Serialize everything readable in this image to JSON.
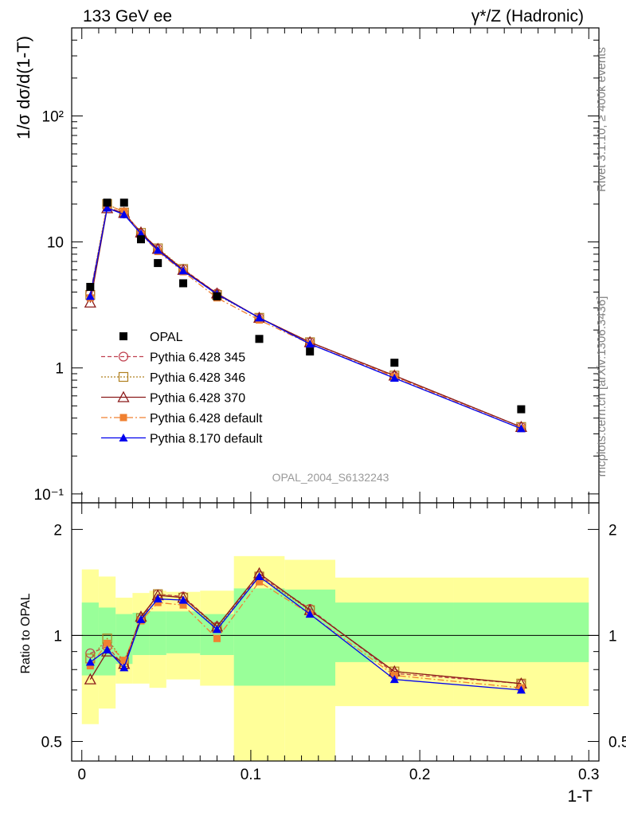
{
  "header": {
    "left": "133 GeV ee",
    "right": "γ*/Z (Hadronic)"
  },
  "side_labels": {
    "rivet": "Rivet 3.1.10, ≥ 400k events",
    "mcplots": "mcplots.cern.ch [arXiv:1306.3436]"
  },
  "watermark": "OPAL_2004_S6132243",
  "chart_data": [
    {
      "type": "scatter",
      "panel": "main",
      "ylabel": "1/σ dσ/d(1-T)",
      "yscale": "log",
      "ylim": [
        0.085,
        500
      ],
      "xlim": [
        -0.006,
        0.306
      ],
      "ytick_labels": [
        "10⁻¹",
        "1",
        "10",
        "10²"
      ],
      "x": [
        0.005,
        0.015,
        0.025,
        0.035,
        0.045,
        0.06,
        0.08,
        0.105,
        0.135,
        0.185,
        0.26
      ],
      "series": [
        {
          "name": "OPAL",
          "color": "#000000",
          "style": "data",
          "values": [
            4.4,
            20.5,
            20.5,
            10.5,
            6.8,
            4.7,
            3.7,
            1.7,
            1.35,
            1.1,
            0.47
          ]
        },
        {
          "name": "Pythia 6.428 345",
          "color": "#c0404f",
          "marker": "open-circle",
          "dash": "5,3",
          "values": [
            3.9,
            19.0,
            16.8,
            11.6,
            8.8,
            6.1,
            3.9,
            2.5,
            1.6,
            0.86,
            0.34
          ]
        },
        {
          "name": "Pythia 6.428 346",
          "color": "#b08020",
          "marker": "open-square",
          "dash": "2,2",
          "values": [
            3.8,
            20.0,
            17.1,
            11.8,
            8.9,
            6.1,
            3.8,
            2.5,
            1.6,
            0.87,
            0.34
          ]
        },
        {
          "name": "Pythia 6.428 370",
          "color": "#8b1a1a",
          "marker": "open-triangle",
          "dash": "",
          "values": [
            3.3,
            18.5,
            17.0,
            11.9,
            8.8,
            6.0,
            3.9,
            2.5,
            1.6,
            0.87,
            0.34
          ]
        },
        {
          "name": "Pythia 6.428 default",
          "color": "#f08030",
          "marker": "filled-square",
          "dash": "8,3,2,3",
          "values": [
            3.6,
            19.6,
            17.5,
            11.5,
            8.4,
            5.8,
            3.6,
            2.4,
            1.55,
            0.85,
            0.33
          ]
        },
        {
          "name": "Pythia 8.170 default",
          "color": "#0000ee",
          "marker": "filled-triangle",
          "dash": "",
          "values": [
            3.7,
            18.6,
            16.5,
            11.6,
            8.6,
            5.9,
            3.85,
            2.5,
            1.55,
            0.83,
            0.33
          ]
        }
      ]
    },
    {
      "type": "line",
      "panel": "ratio",
      "ylabel": "Ratio to OPAL",
      "xlabel": "1-T",
      "yscale": "log",
      "ylim": [
        0.44,
        2.38
      ],
      "xlim": [
        -0.006,
        0.306
      ],
      "ytick_labels": [
        "0.5",
        "1",
        "2"
      ],
      "xtick_labels": [
        "0",
        "0.1",
        "0.2",
        "0.3"
      ],
      "x": [
        0.005,
        0.015,
        0.025,
        0.035,
        0.045,
        0.06,
        0.08,
        0.105,
        0.135,
        0.185,
        0.26
      ],
      "bands": {
        "bin_edges": [
          0.0,
          0.01,
          0.02,
          0.03,
          0.04,
          0.05,
          0.07,
          0.09,
          0.12,
          0.15,
          0.22,
          0.3
        ],
        "green_low": [
          0.77,
          0.77,
          0.83,
          0.88,
          0.88,
          0.89,
          0.88,
          0.72,
          0.72,
          0.84,
          0.84
        ],
        "green_high": [
          1.24,
          1.2,
          1.15,
          1.16,
          1.17,
          1.17,
          1.15,
          1.36,
          1.35,
          1.24,
          1.24
        ],
        "yellow_low": [
          0.56,
          0.62,
          0.73,
          0.73,
          0.71,
          0.75,
          0.72,
          0.42,
          0.36,
          0.63,
          0.63
        ],
        "yellow_high": [
          1.54,
          1.47,
          1.28,
          1.32,
          1.34,
          1.33,
          1.34,
          1.68,
          1.64,
          1.46,
          1.46
        ]
      },
      "series": [
        {
          "name": "Pythia 6.428 345",
          "values": [
            0.89,
            0.93,
            0.82,
            1.11,
            1.31,
            1.29,
            1.06,
            1.48,
            1.19,
            0.78,
            0.73
          ]
        },
        {
          "name": "Pythia 6.428 346",
          "values": [
            0.86,
            0.98,
            0.84,
            1.12,
            1.31,
            1.28,
            1.05,
            1.47,
            1.18,
            0.79,
            0.73
          ]
        },
        {
          "name": "Pythia 6.428 370",
          "values": [
            0.75,
            0.9,
            0.83,
            1.13,
            1.3,
            1.28,
            1.06,
            1.5,
            1.18,
            0.79,
            0.73
          ]
        },
        {
          "name": "Pythia 6.428 default",
          "values": [
            0.82,
            0.95,
            0.85,
            1.1,
            1.24,
            1.22,
            0.98,
            1.42,
            1.15,
            0.77,
            0.71
          ]
        },
        {
          "name": "Pythia 8.170 default",
          "values": [
            0.84,
            0.91,
            0.81,
            1.11,
            1.27,
            1.26,
            1.04,
            1.47,
            1.15,
            0.75,
            0.7
          ]
        }
      ]
    }
  ]
}
